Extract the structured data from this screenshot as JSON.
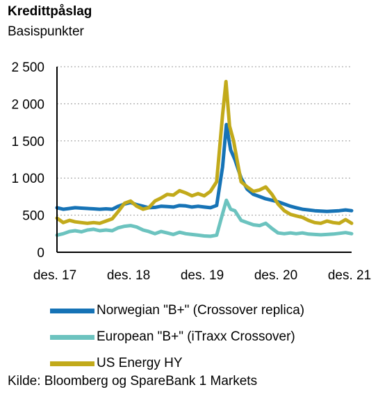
{
  "chart_data": {
    "type": "line",
    "title": "Kredittpåslag",
    "subtitle": "Basispunkter",
    "xlabel": "",
    "ylabel": "",
    "x_ticks": [
      "des. 17",
      "des. 18",
      "des. 19",
      "des. 20",
      "des. 21"
    ],
    "x_range": [
      "2017-12",
      "2021-12"
    ],
    "ylim": [
      0,
      2500
    ],
    "y_ticks": [
      0,
      500,
      1000,
      1500,
      2000,
      2500
    ],
    "y_tick_labels": [
      "0",
      "500",
      "1 000",
      "1 500",
      "2 000",
      "2 500"
    ],
    "grid": "horizontal dashed",
    "legend_position": "bottom",
    "series": [
      {
        "name": "Norwegian \"B+\" (Crossover replica)",
        "color": "#1673b6",
        "points": [
          [
            "2017-12-01",
            600
          ],
          [
            "2018-01-01",
            580
          ],
          [
            "2018-02-01",
            590
          ],
          [
            "2018-03-01",
            600
          ],
          [
            "2018-04-01",
            595
          ],
          [
            "2018-05-01",
            590
          ],
          [
            "2018-06-01",
            585
          ],
          [
            "2018-07-01",
            580
          ],
          [
            "2018-08-01",
            585
          ],
          [
            "2018-09-01",
            580
          ],
          [
            "2018-10-01",
            620
          ],
          [
            "2018-11-01",
            650
          ],
          [
            "2018-12-01",
            670
          ],
          [
            "2019-01-01",
            640
          ],
          [
            "2019-02-01",
            620
          ],
          [
            "2019-03-01",
            600
          ],
          [
            "2019-04-01",
            605
          ],
          [
            "2019-05-01",
            620
          ],
          [
            "2019-06-01",
            615
          ],
          [
            "2019-07-01",
            610
          ],
          [
            "2019-08-01",
            630
          ],
          [
            "2019-09-01",
            625
          ],
          [
            "2019-10-01",
            610
          ],
          [
            "2019-11-01",
            620
          ],
          [
            "2019-12-01",
            610
          ],
          [
            "2020-01-01",
            600
          ],
          [
            "2020-02-01",
            630
          ],
          [
            "2020-03-01",
            1150
          ],
          [
            "2020-03-20",
            1720
          ],
          [
            "2020-04-10",
            1380
          ],
          [
            "2020-05-01",
            1250
          ],
          [
            "2020-06-01",
            1000
          ],
          [
            "2020-07-01",
            850
          ],
          [
            "2020-08-01",
            780
          ],
          [
            "2020-09-01",
            750
          ],
          [
            "2020-10-01",
            720
          ],
          [
            "2020-11-01",
            700
          ],
          [
            "2020-12-01",
            680
          ],
          [
            "2021-01-01",
            650
          ],
          [
            "2021-02-01",
            620
          ],
          [
            "2021-03-01",
            600
          ],
          [
            "2021-04-01",
            580
          ],
          [
            "2021-05-01",
            570
          ],
          [
            "2021-06-01",
            560
          ],
          [
            "2021-07-01",
            555
          ],
          [
            "2021-08-01",
            550
          ],
          [
            "2021-09-01",
            555
          ],
          [
            "2021-10-01",
            560
          ],
          [
            "2021-11-01",
            570
          ],
          [
            "2021-12-01",
            560
          ]
        ]
      },
      {
        "name": "European \"B+\" (iTraxx Crossover)",
        "color": "#6cc3bf",
        "points": [
          [
            "2017-12-01",
            230
          ],
          [
            "2018-01-01",
            250
          ],
          [
            "2018-02-01",
            280
          ],
          [
            "2018-03-01",
            290
          ],
          [
            "2018-04-01",
            275
          ],
          [
            "2018-05-01",
            300
          ],
          [
            "2018-06-01",
            310
          ],
          [
            "2018-07-01",
            290
          ],
          [
            "2018-08-01",
            300
          ],
          [
            "2018-09-01",
            290
          ],
          [
            "2018-10-01",
            330
          ],
          [
            "2018-11-01",
            350
          ],
          [
            "2018-12-01",
            360
          ],
          [
            "2019-01-01",
            340
          ],
          [
            "2019-02-01",
            300
          ],
          [
            "2019-03-01",
            280
          ],
          [
            "2019-04-01",
            250
          ],
          [
            "2019-05-01",
            280
          ],
          [
            "2019-06-01",
            260
          ],
          [
            "2019-07-01",
            240
          ],
          [
            "2019-08-01",
            270
          ],
          [
            "2019-09-01",
            250
          ],
          [
            "2019-10-01",
            240
          ],
          [
            "2019-11-01",
            230
          ],
          [
            "2019-12-01",
            220
          ],
          [
            "2020-01-01",
            215
          ],
          [
            "2020-02-01",
            230
          ],
          [
            "2020-03-01",
            520
          ],
          [
            "2020-03-20",
            700
          ],
          [
            "2020-04-10",
            580
          ],
          [
            "2020-05-01",
            560
          ],
          [
            "2020-06-01",
            430
          ],
          [
            "2020-07-01",
            400
          ],
          [
            "2020-08-01",
            370
          ],
          [
            "2020-09-01",
            360
          ],
          [
            "2020-10-01",
            390
          ],
          [
            "2020-11-01",
            320
          ],
          [
            "2020-12-01",
            260
          ],
          [
            "2021-01-01",
            250
          ],
          [
            "2021-02-01",
            260
          ],
          [
            "2021-03-01",
            250
          ],
          [
            "2021-04-01",
            260
          ],
          [
            "2021-05-01",
            245
          ],
          [
            "2021-06-01",
            240
          ],
          [
            "2021-07-01",
            235
          ],
          [
            "2021-08-01",
            240
          ],
          [
            "2021-09-01",
            245
          ],
          [
            "2021-10-01",
            255
          ],
          [
            "2021-11-01",
            265
          ],
          [
            "2021-12-01",
            250
          ]
        ]
      },
      {
        "name": "US Energy HY",
        "color": "#c2aa1b",
        "points": [
          [
            "2017-12-01",
            460
          ],
          [
            "2018-01-01",
            400
          ],
          [
            "2018-02-01",
            430
          ],
          [
            "2018-03-01",
            410
          ],
          [
            "2018-04-01",
            400
          ],
          [
            "2018-05-01",
            390
          ],
          [
            "2018-06-01",
            400
          ],
          [
            "2018-07-01",
            390
          ],
          [
            "2018-08-01",
            420
          ],
          [
            "2018-09-01",
            450
          ],
          [
            "2018-10-01",
            550
          ],
          [
            "2018-11-01",
            660
          ],
          [
            "2018-12-01",
            690
          ],
          [
            "2019-01-01",
            620
          ],
          [
            "2019-02-01",
            580
          ],
          [
            "2019-03-01",
            600
          ],
          [
            "2019-04-01",
            690
          ],
          [
            "2019-05-01",
            730
          ],
          [
            "2019-06-01",
            780
          ],
          [
            "2019-07-01",
            770
          ],
          [
            "2019-08-01",
            830
          ],
          [
            "2019-09-01",
            800
          ],
          [
            "2019-10-01",
            760
          ],
          [
            "2019-11-01",
            790
          ],
          [
            "2019-12-01",
            760
          ],
          [
            "2020-01-01",
            820
          ],
          [
            "2020-02-01",
            950
          ],
          [
            "2020-03-01",
            1850
          ],
          [
            "2020-03-18",
            2300
          ],
          [
            "2020-04-05",
            1700
          ],
          [
            "2020-04-25",
            1500
          ],
          [
            "2020-05-15",
            1200
          ],
          [
            "2020-06-01",
            950
          ],
          [
            "2020-07-01",
            880
          ],
          [
            "2020-08-01",
            820
          ],
          [
            "2020-09-01",
            840
          ],
          [
            "2020-10-01",
            880
          ],
          [
            "2020-11-01",
            780
          ],
          [
            "2020-12-01",
            650
          ],
          [
            "2021-01-01",
            560
          ],
          [
            "2021-02-01",
            510
          ],
          [
            "2021-03-01",
            490
          ],
          [
            "2021-04-01",
            470
          ],
          [
            "2021-05-01",
            430
          ],
          [
            "2021-06-01",
            400
          ],
          [
            "2021-07-01",
            390
          ],
          [
            "2021-08-01",
            420
          ],
          [
            "2021-09-01",
            400
          ],
          [
            "2021-10-01",
            390
          ],
          [
            "2021-11-01",
            440
          ],
          [
            "2021-12-01",
            390
          ]
        ]
      }
    ]
  },
  "source": "Kilde: Bloomberg og SpareBank 1 Markets"
}
